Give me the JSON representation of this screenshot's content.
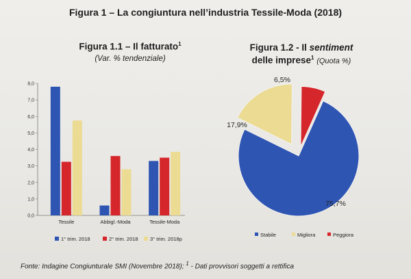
{
  "figure_title": "Figura 1 – La congiuntura nell’industria Tessile-Moda (2018)",
  "footnote_marker": "1",
  "footer": {
    "source": "Fonte: Indagine Congiunturale SMI (Novembre 2018);",
    "marker": "1",
    "note": "- Dati provvisori soggetti a rettifica"
  },
  "colors": {
    "blue": "#2f55b3",
    "red": "#d5262b",
    "yellow": "#ecdb93"
  },
  "chart_data": [
    {
      "type": "bar",
      "title": "Figura 1.1 – Il fatturato",
      "subtitle": "(Var. % tendenziale)",
      "categories": [
        "Tessile",
        "Abbigl.-Moda",
        "Tessile-Moda"
      ],
      "series": [
        {
          "name": "1° trim. 2018",
          "values": [
            7.8,
            0.6,
            3.3
          ]
        },
        {
          "name": "2° trim. 2018",
          "values": [
            3.25,
            3.6,
            3.5
          ]
        },
        {
          "name": "3° trim. 2018p",
          "values": [
            5.75,
            2.8,
            3.85
          ]
        }
      ],
      "ylim": [
        0,
        8
      ],
      "yticks": [
        "0,0",
        "1,0",
        "2,0",
        "3,0",
        "4,0",
        "5,0",
        "6,0",
        "7,0",
        "8,0"
      ],
      "xlabel": "",
      "ylabel": "",
      "legend": "bottom"
    },
    {
      "type": "pie",
      "title_line1": "Figura 1.2 - Il",
      "title_italic": "sentiment",
      "title_line2": "delle imprese",
      "title_note": "(Quota %)",
      "labels": [
        "Stabile",
        "Migliora",
        "Peggiora"
      ],
      "values": [
        75.7,
        17.9,
        6.5
      ],
      "value_labels": [
        "75,7%",
        "17,9%",
        "6,5%"
      ],
      "legend": "bottom"
    }
  ]
}
